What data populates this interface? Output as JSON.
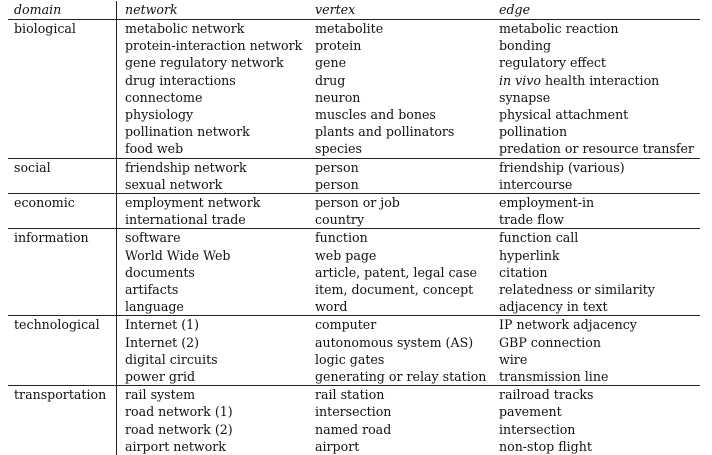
{
  "headers": {
    "domain": "domain",
    "network": "network",
    "vertex": "vertex",
    "edge": "edge"
  },
  "groups": [
    {
      "domain": "biological",
      "rows": [
        {
          "network": "metabolic network",
          "vertex": "metabolite",
          "edge": "metabolic reaction"
        },
        {
          "network": "protein-interaction network",
          "vertex": "protein",
          "edge": "bonding"
        },
        {
          "network": "gene regulatory network",
          "vertex": "gene",
          "edge": "regulatory effect"
        },
        {
          "network": "drug interactions",
          "vertex": "drug",
          "edge_italic": "in vivo",
          "edge": " health interaction"
        },
        {
          "network": "connectome",
          "vertex": "neuron",
          "edge": "synapse"
        },
        {
          "network": "physiology",
          "vertex": "muscles and bones",
          "edge": "physical attachment"
        },
        {
          "network": "pollination network",
          "vertex": "plants and pollinators",
          "edge": "pollination"
        },
        {
          "network": "food web",
          "vertex": "species",
          "edge": "predation or resource transfer"
        }
      ]
    },
    {
      "domain": "social",
      "rows": [
        {
          "network": "friendship network",
          "vertex": "person",
          "edge": "friendship (various)"
        },
        {
          "network": "sexual network",
          "vertex": "person",
          "edge": "intercourse"
        }
      ]
    },
    {
      "domain": "economic",
      "rows": [
        {
          "network": "employment network",
          "vertex": "person or job",
          "edge": "employment-in"
        },
        {
          "network": "international trade",
          "vertex": "country",
          "edge": "trade flow"
        }
      ]
    },
    {
      "domain": "information",
      "rows": [
        {
          "network": "software",
          "vertex": "function",
          "edge": "function call"
        },
        {
          "network": "World Wide Web",
          "vertex": "web page",
          "edge": "hyperlink"
        },
        {
          "network": "documents",
          "vertex": "article, patent, legal case",
          "edge": "citation"
        },
        {
          "network": "artifacts",
          "vertex": "item, document, concept",
          "edge": "relatedness or similarity"
        },
        {
          "network": "language",
          "vertex": "word",
          "edge": "adjacency in text"
        }
      ]
    },
    {
      "domain": "technological",
      "rows": [
        {
          "network": "Internet (1)",
          "vertex": "computer",
          "edge": "IP network adjacency"
        },
        {
          "network": "Internet (2)",
          "vertex": "autonomous system (AS)",
          "edge": "GBP connection"
        },
        {
          "network": "digital circuits",
          "vertex": "logic gates",
          "edge": "wire"
        },
        {
          "network": "power grid",
          "vertex": "generating or relay station",
          "edge": "transmission line"
        }
      ]
    },
    {
      "domain": "transportation",
      "rows": [
        {
          "network": "rail system",
          "vertex": "rail station",
          "edge": "railroad tracks"
        },
        {
          "network": "road network (1)",
          "vertex": "intersection",
          "edge": "pavement"
        },
        {
          "network": "road network (2)",
          "vertex": "named road",
          "edge": "intersection"
        },
        {
          "network": "airport network",
          "vertex": "airport",
          "edge": "non-stop flight"
        }
      ]
    }
  ]
}
